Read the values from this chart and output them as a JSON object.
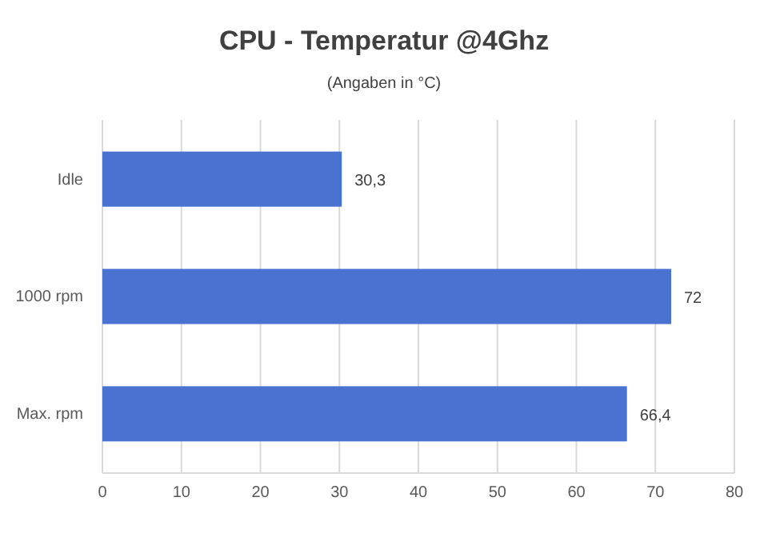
{
  "chart_data": {
    "type": "bar",
    "orientation": "horizontal",
    "title": "CPU - Temperatur @4Ghz",
    "subtitle": "(Angaben in °C)",
    "categories": [
      "Idle",
      "1000 rpm",
      "Max. rpm"
    ],
    "values": [
      30.3,
      72,
      66.4
    ],
    "value_labels": [
      "30,3",
      "72",
      "66,4"
    ],
    "color": "#4a72d0",
    "xlim": [
      0,
      80
    ],
    "xticks": [
      0,
      10,
      20,
      30,
      40,
      50,
      60,
      70,
      80
    ],
    "grid": "x"
  }
}
